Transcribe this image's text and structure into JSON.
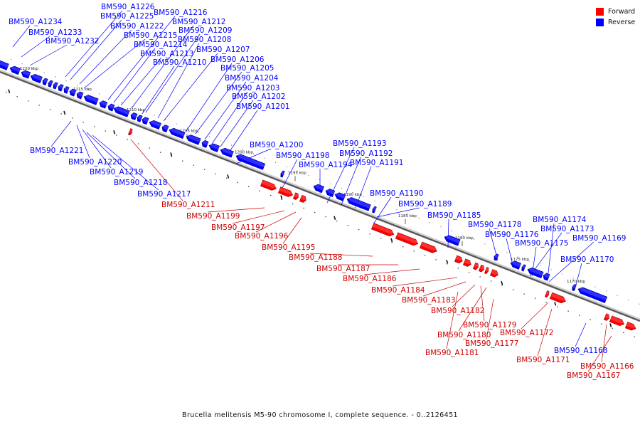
{
  "caption": "Brucella melitensis M5-90 chromosome I, complete sequence. - 0..2126451",
  "legend": [
    {
      "label": "Forward",
      "color": "#ff0000"
    },
    {
      "label": "Reverse",
      "color": "#0000ff"
    }
  ],
  "colors": {
    "forward": "#ff0000",
    "reverse": "#0000ff",
    "backbone": "#8a8a8a"
  },
  "scale_labels": [
    "1220 kbp",
    "1215 kbp",
    "1210 kbp",
    "1205 kbp",
    "1200 kbp",
    "1195 kbp",
    "1190 kbp",
    "1185 kbp",
    "1180 kbp",
    "1175 kbp",
    "1170 kbp"
  ],
  "reverse_labels": [
    "BM590_A1234",
    "BM590_A1233",
    "BM590_A1232",
    "BM590_A1226",
    "BM590_A1225",
    "BM590_A1222",
    "BM590_A1216",
    "BM590_A1215",
    "BM590_A1214",
    "BM590_A1213",
    "BM590_A1212",
    "BM590_A1210",
    "BM590_A1209",
    "BM590_A1208",
    "BM590_A1207",
    "BM590_A1206",
    "BM590_A1205",
    "BM590_A1204",
    "BM590_A1203",
    "BM590_A1202",
    "BM590_A1201",
    "BM590_A1221",
    "BM590_A1220",
    "BM590_A1219",
    "BM590_A1218",
    "BM590_A1217",
    "BM590_A1200",
    "BM590_A1198",
    "BM590_A1194",
    "BM590_A1193",
    "BM590_A1192",
    "BM590_A1191",
    "BM590_A1190",
    "BM590_A1189",
    "BM590_A1185",
    "BM590_A1178",
    "BM590_A1176",
    "BM590_A1175",
    "BM590_A1174",
    "BM590_A1173",
    "BM590_A1169",
    "BM590_A1170",
    "BM590_A1168"
  ],
  "forward_labels": [
    "BM590_A1211",
    "BM590_A1199",
    "BM590_A1197",
    "BM590_A1196",
    "BM590_A1195",
    "BM590_A1188",
    "BM590_A1187",
    "BM590_A1186",
    "BM590_A1184",
    "BM590_A1183",
    "BM590_A1182",
    "BM590_A1179",
    "BM590_A1180",
    "BM590_A1181",
    "BM590_A1177",
    "BM590_A1172",
    "BM590_A1171",
    "BM590_A1166",
    "BM590_A1167"
  ]
}
